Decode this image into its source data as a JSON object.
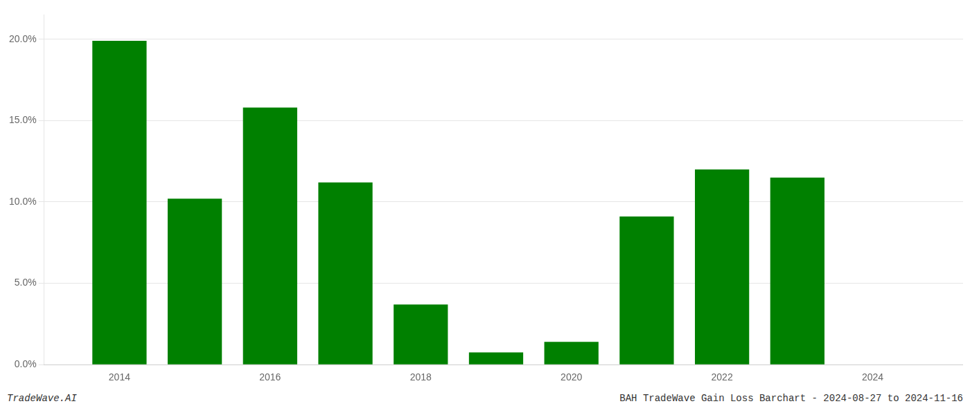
{
  "chart_data": {
    "type": "bar",
    "x": [
      2014,
      2015,
      2016,
      2017,
      2018,
      2019,
      2020,
      2021,
      2022,
      2023
    ],
    "values": [
      0.199,
      0.102,
      0.158,
      0.112,
      0.037,
      0.0075,
      0.014,
      0.091,
      0.12,
      0.115
    ],
    "color": "#008000",
    "xlim": [
      2013.0,
      2025.2
    ],
    "xticks": [
      2014,
      2016,
      2018,
      2020,
      2022,
      2024
    ],
    "ylim": [
      0,
      0.215
    ],
    "yticks": [
      {
        "value": 0.0,
        "label": "0.0%"
      },
      {
        "value": 0.05,
        "label": "5.0%"
      },
      {
        "value": 0.1,
        "label": "10.0%"
      },
      {
        "value": 0.15,
        "label": "15.0%"
      },
      {
        "value": 0.2,
        "label": "20.0%"
      }
    ],
    "grid": true,
    "annotations": [
      "TradeWave.AI",
      "BAH TradeWave Gain Loss Barchart - 2024-08-27 to 2024-11-16"
    ]
  }
}
